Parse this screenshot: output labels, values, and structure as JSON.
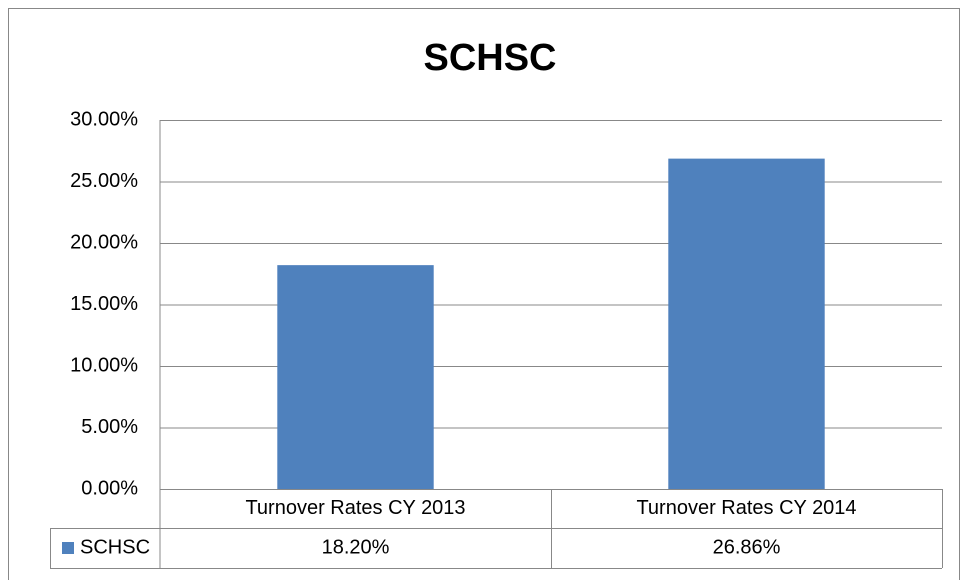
{
  "chart_data": {
    "type": "bar",
    "title": "SCHSC",
    "categories": [
      "Turnover Rates CY 2013",
      "Turnover Rates CY 2014"
    ],
    "series": [
      {
        "name": "SCHSC",
        "color": "#4f81bd",
        "values": [
          18.2,
          26.86
        ],
        "value_labels": [
          "18.20%",
          "26.86%"
        ]
      }
    ],
    "ylim": [
      0,
      30
    ],
    "yticks": [
      {
        "value": 0,
        "label": "0.00%"
      },
      {
        "value": 5,
        "label": "5.00%"
      },
      {
        "value": 10,
        "label": "10.00%"
      },
      {
        "value": 15,
        "label": "15.00%"
      },
      {
        "value": 20,
        "label": "20.00%"
      },
      {
        "value": 25,
        "label": "25.00%"
      },
      {
        "value": 30,
        "label": "30.00%"
      }
    ],
    "grid": true,
    "legend": "data-table"
  }
}
